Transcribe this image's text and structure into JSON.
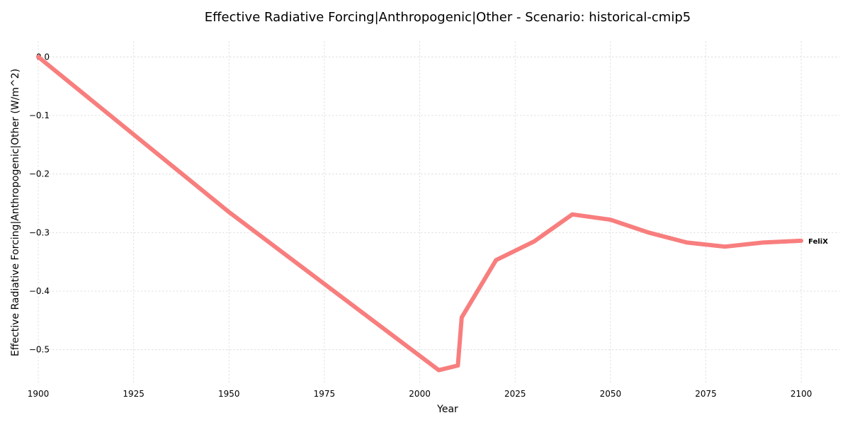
{
  "chart_data": {
    "type": "line",
    "title": "Effective Radiative Forcing|Anthropogenic|Other - Scenario: historical-cmip5",
    "xlabel": "Year",
    "ylabel": "Effective Radiative Forcing|Anthropogenic|Other (W/m^2)",
    "xlim": [
      1900,
      2110
    ],
    "ylim": [
      -0.556,
      0.027
    ],
    "xticks": [
      1900,
      1925,
      1950,
      1975,
      2000,
      2025,
      2050,
      2075,
      2100
    ],
    "yticks": [
      0.0,
      -0.1,
      -0.2,
      -0.3,
      -0.4,
      -0.5
    ],
    "ytick_labels": [
      "0.0",
      "−0.1",
      "−0.2",
      "−0.3",
      "−0.4",
      "−0.5"
    ],
    "grid": true,
    "series": [
      {
        "name": "FeliX",
        "color": "#f87e7e",
        "x": [
          1900,
          1950,
          2005,
          2010,
          2011,
          2020,
          2030,
          2040,
          2050,
          2060,
          2070,
          2080,
          2090,
          2100
        ],
        "y": [
          0.0,
          -0.265,
          -0.535,
          -0.527,
          -0.445,
          -0.347,
          -0.315,
          -0.269,
          -0.278,
          -0.3,
          -0.317,
          -0.324,
          -0.317,
          -0.314
        ]
      }
    ]
  }
}
